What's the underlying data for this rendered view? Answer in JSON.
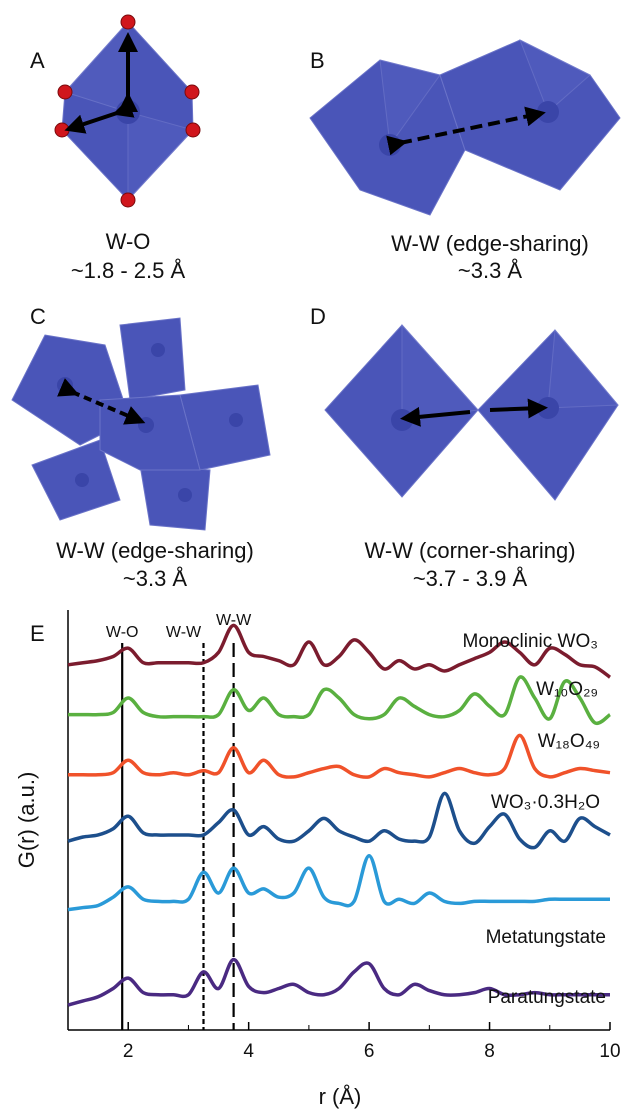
{
  "panels": [
    {
      "label": "A",
      "caption": [
        "W-O",
        "~1.8 - 2.5 Å"
      ]
    },
    {
      "label": "B",
      "caption": [
        "W-W (edge-sharing)",
        "~3.3 Å"
      ]
    },
    {
      "label": "C",
      "caption": [
        "W-W (edge-sharing)",
        "~3.3 Å"
      ]
    },
    {
      "label": "D",
      "caption": [
        "W-W (corner-sharing)",
        "~3.7 - 3.9 Å"
      ]
    }
  ],
  "chart_data": {
    "type": "line",
    "panel_label": "E",
    "x_label": "r (Å)",
    "y_label": "G(r) (a.u.)",
    "x": [
      1,
      1.25,
      1.5,
      1.75,
      2,
      2.25,
      2.5,
      2.75,
      3,
      3.25,
      3.5,
      3.75,
      4,
      4.25,
      4.5,
      4.75,
      5,
      5.25,
      5.5,
      5.75,
      6,
      6.25,
      6.5,
      6.75,
      7,
      7.25,
      7.5,
      7.75,
      8,
      8.25,
      8.5,
      8.75,
      9,
      9.25,
      9.5,
      9.75,
      10
    ],
    "xlim": [
      1,
      10
    ],
    "xticks": [
      2,
      4,
      6,
      8,
      10
    ],
    "xminorticks": [
      3,
      5,
      7,
      9
    ],
    "ylim": [
      0,
      100
    ],
    "reference_lines": [
      {
        "x": 1.9,
        "label": "W-O",
        "style": "solid"
      },
      {
        "x": 3.25,
        "label": "W-W",
        "style": "short-dash"
      },
      {
        "x": 3.75,
        "label": "W-W",
        "style": "long-dash"
      }
    ],
    "series": [
      {
        "name": "Monoclinic WO₃",
        "color": "#7b1c2e",
        "values": [
          88,
          88.5,
          89,
          90,
          92,
          88.5,
          88.5,
          88.5,
          88.5,
          88.5,
          91,
          97.5,
          91,
          90,
          89,
          88,
          93.5,
          88,
          90,
          94,
          91,
          87,
          89,
          87,
          88,
          86.5,
          88,
          89.5,
          91,
          93.5,
          91,
          88,
          92,
          90.5,
          88,
          87.5,
          85
        ]
      },
      {
        "name": "W₁₀O₂₉",
        "color": "#5ab040",
        "values": [
          76,
          76,
          76,
          76.5,
          80,
          76.5,
          75.5,
          75.5,
          75.5,
          75.5,
          76,
          82,
          77,
          80,
          76,
          75.5,
          76,
          82,
          80,
          76,
          75,
          76,
          80,
          78,
          76,
          75.5,
          77,
          81,
          78,
          76,
          85,
          80,
          75,
          84,
          80,
          74,
          76
        ]
      },
      {
        "name": "W₁₈O₄₉",
        "color": "#f0522a",
        "values": [
          61.5,
          61.5,
          61.5,
          62,
          65,
          62,
          61.5,
          62,
          61.5,
          62.5,
          62,
          68,
          62,
          65,
          61.5,
          61,
          62,
          63,
          63.5,
          61.5,
          61,
          63,
          62,
          61.5,
          61,
          62,
          63,
          62,
          61.5,
          63,
          71,
          63,
          61,
          62,
          63,
          62.5,
          62
        ]
      },
      {
        "name": "WO₃·0.3H₂O",
        "color": "#1d4f8c",
        "values": [
          45.5,
          46.5,
          47,
          48.5,
          51.5,
          47.5,
          47,
          47,
          47,
          47,
          50,
          53,
          47,
          49,
          46,
          45.5,
          48,
          51,
          48,
          46.5,
          45.5,
          48,
          46,
          45.5,
          46.5,
          57,
          48,
          45,
          49,
          52,
          46,
          44,
          48,
          45.5,
          51,
          49,
          47
        ]
      },
      {
        "name": "Metatungstate",
        "color": "#2a9ad8",
        "values": [
          29,
          29.5,
          30,
          32,
          34.5,
          31.5,
          31,
          31,
          31.5,
          38,
          33,
          39,
          33,
          34,
          32,
          33,
          39,
          32,
          30.5,
          31,
          42,
          31,
          31.5,
          30.5,
          33,
          31,
          30.5,
          31,
          31,
          31,
          31,
          31,
          31.5,
          31.5,
          31.5,
          31.5,
          31.5
        ]
      },
      {
        "name": "Paratungstate",
        "color": "#4a2a82",
        "values": [
          6,
          7,
          8,
          10,
          12.5,
          9,
          8.5,
          8.5,
          8.5,
          14,
          10,
          17,
          10.5,
          9,
          10,
          11,
          9,
          8.5,
          10,
          14,
          16,
          10,
          8.5,
          11,
          9.5,
          8.5,
          8.5,
          9,
          10,
          8.5,
          8.5,
          9,
          8.5,
          8.5,
          8.5,
          8.5,
          8.5
        ]
      }
    ]
  }
}
